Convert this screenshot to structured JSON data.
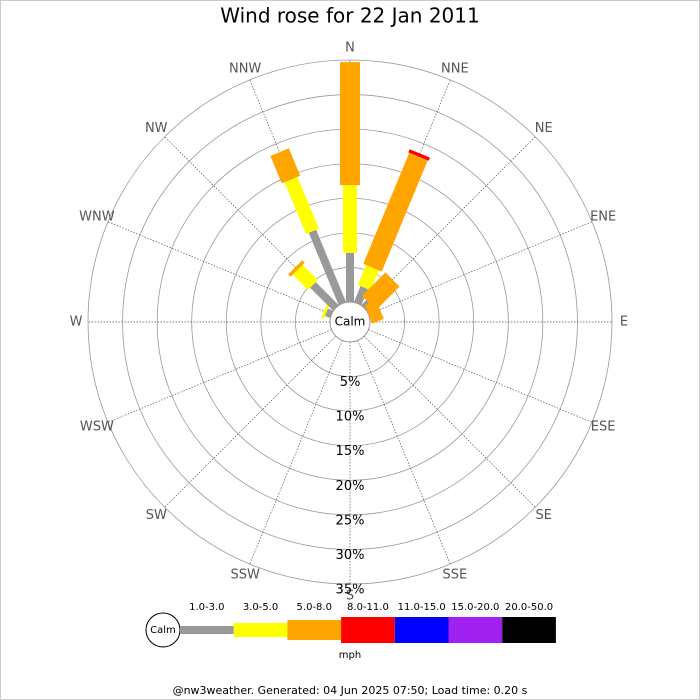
{
  "chart_data": {
    "type": "windrose",
    "title": "Wind rose for 22 Jan 2011",
    "categories": [
      "N",
      "NNE",
      "NE",
      "ENE",
      "E",
      "ESE",
      "SE",
      "SSE",
      "S",
      "SSW",
      "SW",
      "WSW",
      "W",
      "WNW",
      "NW",
      "NNW"
    ],
    "calm_label": "Calm",
    "ylim": [
      0,
      35
    ],
    "yticks": [
      {
        "value": 5,
        "label": "5%"
      },
      {
        "value": 10,
        "label": "10%"
      },
      {
        "value": 15,
        "label": "15%"
      },
      {
        "value": 20,
        "label": "20%"
      },
      {
        "value": 25,
        "label": "25%"
      },
      {
        "value": 30,
        "label": "30%"
      },
      {
        "value": 35,
        "label": "35%"
      }
    ],
    "series": [
      {
        "name": "1.0-3.0",
        "color": "#999999",
        "values": [
          7.1,
          2.5,
          1.0,
          0,
          0,
          0,
          0,
          0,
          0,
          0,
          0,
          0,
          0,
          0.8,
          4.7,
          11.3
        ]
      },
      {
        "name": "3.0-5.0",
        "color": "#ffff00",
        "values": [
          9.8,
          3.1,
          0,
          0,
          0,
          0,
          0,
          0,
          0,
          0,
          0,
          0,
          0,
          0.4,
          3.1,
          8.1
        ]
      },
      {
        "name": "5.0-8.0",
        "color": "#ffa500",
        "values": [
          17.8,
          17.4,
          4.8,
          1.8,
          0,
          0,
          0,
          0,
          0,
          0,
          0,
          0,
          0,
          0,
          0.5,
          4.3
        ]
      },
      {
        "name": "8.0-11.0",
        "color": "#ff0000",
        "values": [
          0,
          0.5,
          0,
          0,
          0,
          0,
          0,
          0,
          0,
          0,
          0,
          0,
          0,
          0,
          0,
          0
        ]
      },
      {
        "name": "11.0-15.0",
        "color": "#0000ff",
        "values": [
          0,
          0,
          0,
          0,
          0,
          0,
          0,
          0,
          0,
          0,
          0,
          0,
          0,
          0,
          0,
          0
        ]
      },
      {
        "name": "15.0-20.0",
        "color": "#a020f0",
        "values": [
          0,
          0,
          0,
          0,
          0,
          0,
          0,
          0,
          0,
          0,
          0,
          0,
          0,
          0,
          0,
          0
        ]
      },
      {
        "name": "20.0-50.0",
        "color": "#000000",
        "values": [
          0,
          0,
          0,
          0,
          0,
          0,
          0,
          0,
          0,
          0,
          0,
          0,
          0,
          0,
          0,
          0
        ]
      }
    ],
    "legend_unit": "mph",
    "footer": "@nw3weather. Generated: 04 Jun 2025 07:50; Load time: 0.20 s"
  }
}
